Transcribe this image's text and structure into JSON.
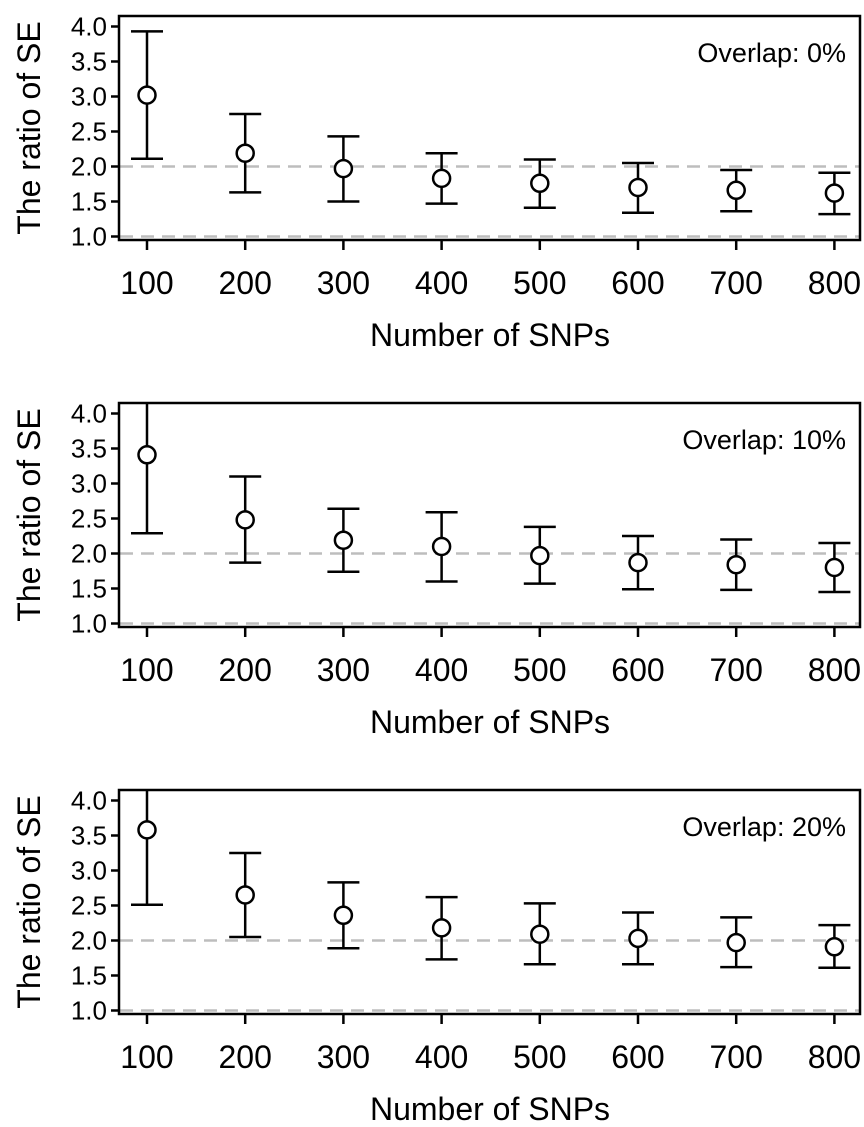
{
  "chart_data": [
    {
      "type": "scatter",
      "title": "",
      "annotation": "Overlap: 0%",
      "xlabel": "Number of SNPs",
      "ylabel": "The ratio of SE",
      "categories": [
        "100",
        "200",
        "300",
        "400",
        "500",
        "600",
        "700",
        "800"
      ],
      "values": [
        3.02,
        2.19,
        1.97,
        1.83,
        1.76,
        1.7,
        1.66,
        1.62
      ],
      "lower": [
        2.11,
        1.63,
        1.5,
        1.47,
        1.41,
        1.34,
        1.36,
        1.32
      ],
      "upper": [
        3.93,
        2.75,
        2.43,
        2.19,
        2.1,
        2.05,
        1.95,
        1.91
      ],
      "yticks": [
        "1.0",
        "1.5",
        "2.0",
        "2.5",
        "3.0",
        "3.5",
        "4.0"
      ],
      "ylim": [
        0.95,
        4.15
      ],
      "reference_lines": [
        1.0,
        2.0
      ]
    },
    {
      "type": "scatter",
      "title": "",
      "annotation": "Overlap: 10%",
      "xlabel": "Number of SNPs",
      "ylabel": "The ratio of SE",
      "categories": [
        "100",
        "200",
        "300",
        "400",
        "500",
        "600",
        "700",
        "800"
      ],
      "values": [
        3.41,
        2.48,
        2.19,
        2.1,
        1.97,
        1.87,
        1.84,
        1.8
      ],
      "lower": [
        2.29,
        1.87,
        1.74,
        1.6,
        1.57,
        1.49,
        1.48,
        1.45
      ],
      "upper": [
        4.15,
        3.1,
        2.64,
        2.59,
        2.38,
        2.25,
        2.2,
        2.15
      ],
      "yticks": [
        "1.0",
        "1.5",
        "2.0",
        "2.5",
        "3.0",
        "3.5",
        "4.0"
      ],
      "ylim": [
        0.95,
        4.15
      ],
      "reference_lines": [
        1.0,
        2.0
      ]
    },
    {
      "type": "scatter",
      "title": "",
      "annotation": "Overlap: 20%",
      "xlabel": "Number of SNPs",
      "ylabel": "The ratio of SE",
      "categories": [
        "100",
        "200",
        "300",
        "400",
        "500",
        "600",
        "700",
        "800"
      ],
      "values": [
        3.58,
        2.65,
        2.36,
        2.18,
        2.09,
        2.03,
        1.97,
        1.91
      ],
      "lower": [
        2.51,
        2.05,
        1.89,
        1.73,
        1.66,
        1.66,
        1.62,
        1.61
      ],
      "upper": [
        4.15,
        3.25,
        2.83,
        2.62,
        2.53,
        2.4,
        2.33,
        2.22
      ],
      "yticks": [
        "1.0",
        "1.5",
        "2.0",
        "2.5",
        "3.0",
        "3.5",
        "4.0"
      ],
      "ylim": [
        0.95,
        4.15
      ],
      "reference_lines": [
        1.0,
        2.0
      ]
    }
  ]
}
